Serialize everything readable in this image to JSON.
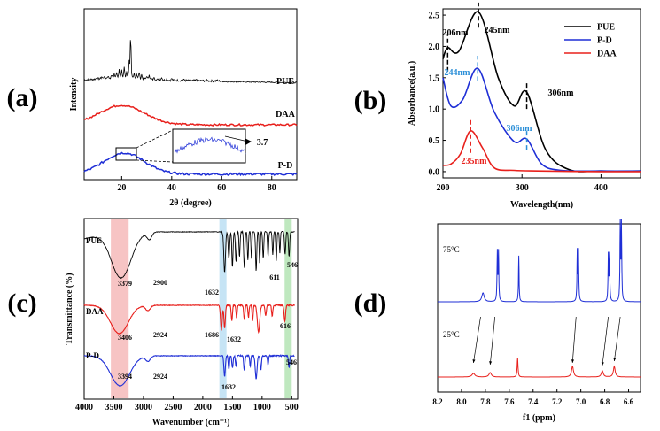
{
  "panels": [
    {
      "letter": "(a)",
      "chart_data": {
        "type": "line",
        "xlabel": "2θ (degree)",
        "ylabel": "Intensity",
        "xlim": [
          5,
          90
        ],
        "xticks": [
          "20",
          "40",
          "60",
          "80"
        ],
        "series": [
          {
            "name": "PUE",
            "color": "#000000",
            "description": "sharp crystalline peaks between 10 and 35, tallest near 23"
          },
          {
            "name": "DAA",
            "color": "#e8201c",
            "description": "broad amorphous hump centered near 20"
          },
          {
            "name": "P-D",
            "color": "#1f2fd6",
            "description": "broad hump centered near 21 with inset zoom"
          }
        ],
        "annotations": [
          "3.7"
        ]
      }
    },
    {
      "letter": "(b)",
      "chart_data": {
        "type": "line",
        "xlabel": "Wavelength(nm)",
        "ylabel": "Absorbance(a.u.)",
        "xlim": [
          200,
          450
        ],
        "ylim": [
          -0.1,
          2.6
        ],
        "xticks": [
          "200",
          "300",
          "400"
        ],
        "yticks": [
          "0.0",
          "0.5",
          "1.0",
          "1.5",
          "2.0",
          "2.5"
        ],
        "legend_position": "top-right",
        "series": [
          {
            "name": "PUE",
            "color": "#000000",
            "x": [
              200,
              206,
              220,
              245,
              270,
              290,
              306,
              330,
              360,
              400,
              450
            ],
            "y": [
              1.8,
              1.98,
              1.92,
              2.55,
              1.5,
              1.05,
              1.27,
              0.35,
              0.03,
              0.01,
              0.01
            ]
          },
          {
            "name": "P-D",
            "color": "#1f2fd6",
            "x": [
              200,
              210,
              225,
              244,
              265,
              290,
              306,
              325,
              350,
              400,
              450
            ],
            "y": [
              1.5,
              1.05,
              1.15,
              1.65,
              0.95,
              0.48,
              0.52,
              0.12,
              0.02,
              0.01,
              0.01
            ]
          },
          {
            "name": "DAA",
            "color": "#e8201c",
            "x": [
              200,
              210,
              222,
              235,
              250,
              265,
              290,
              320,
              400,
              450
            ],
            "y": [
              0.1,
              0.12,
              0.28,
              0.65,
              0.38,
              0.06,
              0.02,
              0.01,
              0.0,
              0.0
            ]
          }
        ],
        "annotations": [
          {
            "text": "206nm",
            "color": "#000000"
          },
          {
            "text": "245nm",
            "color": "#000000"
          },
          {
            "text": "306nm",
            "color": "#000000"
          },
          {
            "text": "244nm",
            "color": "#2b8fd8"
          },
          {
            "text": "306nm",
            "color": "#2b8fd8"
          },
          {
            "text": "235nm",
            "color": "#e8201c"
          }
        ]
      }
    },
    {
      "letter": "(c)",
      "chart_data": {
        "type": "line",
        "xlabel": "Wavenumber (cm⁻¹)",
        "ylabel": "Transmittance (%)",
        "xlim": [
          4000,
          400
        ],
        "xticks": [
          "4000",
          "3500",
          "3000",
          "2500",
          "2000",
          "1500",
          "1000",
          "500"
        ],
        "series": [
          {
            "name": "PUE",
            "color": "#000000",
            "peaks": [
              "3379",
              "2900",
              "1632",
              "611",
              "546"
            ]
          },
          {
            "name": "DAA",
            "color": "#e8201c",
            "peaks": [
              "3406",
              "2924",
              "1686",
              "1632",
              "616"
            ]
          },
          {
            "name": "P-D",
            "color": "#1f2fd6",
            "peaks": [
              "3394",
              "2924",
              "1632",
              "546"
            ]
          }
        ],
        "highlight_bands": [
          {
            "from": 3550,
            "to": 3250,
            "color": "#f7c4c4"
          },
          {
            "from": 1720,
            "to": 1600,
            "color": "#c6e4f5"
          },
          {
            "from": 620,
            "to": 500,
            "color": "#bfe8bf"
          }
        ]
      }
    },
    {
      "letter": "(d)",
      "chart_data": {
        "type": "line",
        "xlabel": "f1 (ppm)",
        "xlim": [
          8.2,
          6.5
        ],
        "xticks": [
          "8.2",
          "8.0",
          "7.8",
          "7.6",
          "7.4",
          "7.2",
          "7.0",
          "6.8",
          "6.6"
        ],
        "series": [
          {
            "name": "75°C",
            "color": "#1f2fd6",
            "peaks_ppm": [
              7.82,
              7.7,
              7.69,
              7.52,
              7.03,
              7.02,
              6.77,
              6.76,
              6.67,
              6.66
            ]
          },
          {
            "name": "25°C",
            "color": "#e8201c",
            "peaks_ppm": [
              7.9,
              7.76,
              7.53,
              7.07,
              6.82,
              6.72
            ]
          }
        ]
      }
    }
  ]
}
